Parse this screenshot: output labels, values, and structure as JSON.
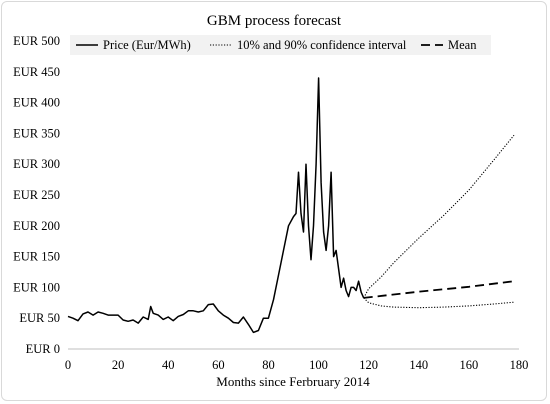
{
  "chart_data": {
    "type": "line",
    "title": "GBM process forecast",
    "xlabel": "Months since Ferbruary 2014",
    "ylabel": "",
    "xlim": [
      0,
      180
    ],
    "ylim": [
      0,
      500
    ],
    "x_ticks": [
      0,
      20,
      40,
      60,
      80,
      100,
      120,
      140,
      160,
      180
    ],
    "x_tick_labels": [
      "0",
      "20",
      "40",
      "60",
      "80",
      "100",
      "120",
      "140",
      "160",
      "180"
    ],
    "y_ticks": [
      0,
      50,
      100,
      150,
      200,
      250,
      300,
      350,
      400,
      450,
      500
    ],
    "y_tick_labels": [
      "EUR 0",
      "EUR 50",
      "EUR 100",
      "EUR 150",
      "EUR 200",
      "EUR 250",
      "EUR 300",
      "EUR 350",
      "EUR 400",
      "EUR 450",
      "EUR 500"
    ],
    "grid": false,
    "legend_position": "top",
    "series": [
      {
        "name": "Price (Eur/MWh)",
        "style": "solid",
        "x": [
          0,
          2,
          4,
          6,
          8,
          10,
          12,
          14,
          16,
          18,
          20,
          22,
          24,
          26,
          28,
          30,
          32,
          33,
          34,
          36,
          38,
          40,
          42,
          44,
          46,
          48,
          50,
          52,
          54,
          56,
          58,
          60,
          62,
          64,
          66,
          68,
          70,
          72,
          74,
          76,
          78,
          80,
          82,
          84,
          86,
          88,
          90,
          91,
          92,
          93,
          94,
          95,
          96,
          97,
          98,
          99,
          100,
          101,
          102,
          103,
          104,
          105,
          106,
          107,
          108,
          109,
          110,
          111,
          112,
          113,
          114,
          115,
          116,
          117,
          118
        ],
        "values": [
          53,
          50,
          46,
          57,
          60,
          55,
          60,
          58,
          55,
          55,
          55,
          47,
          45,
          47,
          42,
          52,
          48,
          69,
          58,
          55,
          48,
          52,
          46,
          53,
          56,
          62,
          62,
          60,
          62,
          72,
          73,
          62,
          55,
          50,
          43,
          42,
          52,
          40,
          27,
          30,
          50,
          50,
          80,
          120,
          160,
          200,
          215,
          220,
          287,
          220,
          190,
          300,
          200,
          145,
          200,
          300,
          440,
          270,
          190,
          160,
          200,
          287,
          150,
          160,
          130,
          100,
          115,
          95,
          85,
          100,
          100,
          95,
          110,
          92,
          83
        ]
      },
      {
        "name": "10% and 90% confidence interval",
        "style": "dotted",
        "x": [
          118,
          120,
          125,
          130,
          140,
          150,
          160,
          170,
          178
        ],
        "values": [
          83,
          98,
          117,
          140,
          180,
          217,
          258,
          307,
          347
        ]
      },
      {
        "name": "",
        "style": "dotted",
        "x": [
          118,
          120,
          125,
          130,
          140,
          150,
          160,
          170,
          178
        ],
        "values": [
          83,
          75,
          70,
          68,
          67,
          68,
          70,
          73,
          76
        ]
      },
      {
        "name": "Mean",
        "style": "dashed",
        "x": [
          118,
          140,
          160,
          178
        ],
        "values": [
          83,
          93,
          101,
          110
        ]
      }
    ]
  }
}
